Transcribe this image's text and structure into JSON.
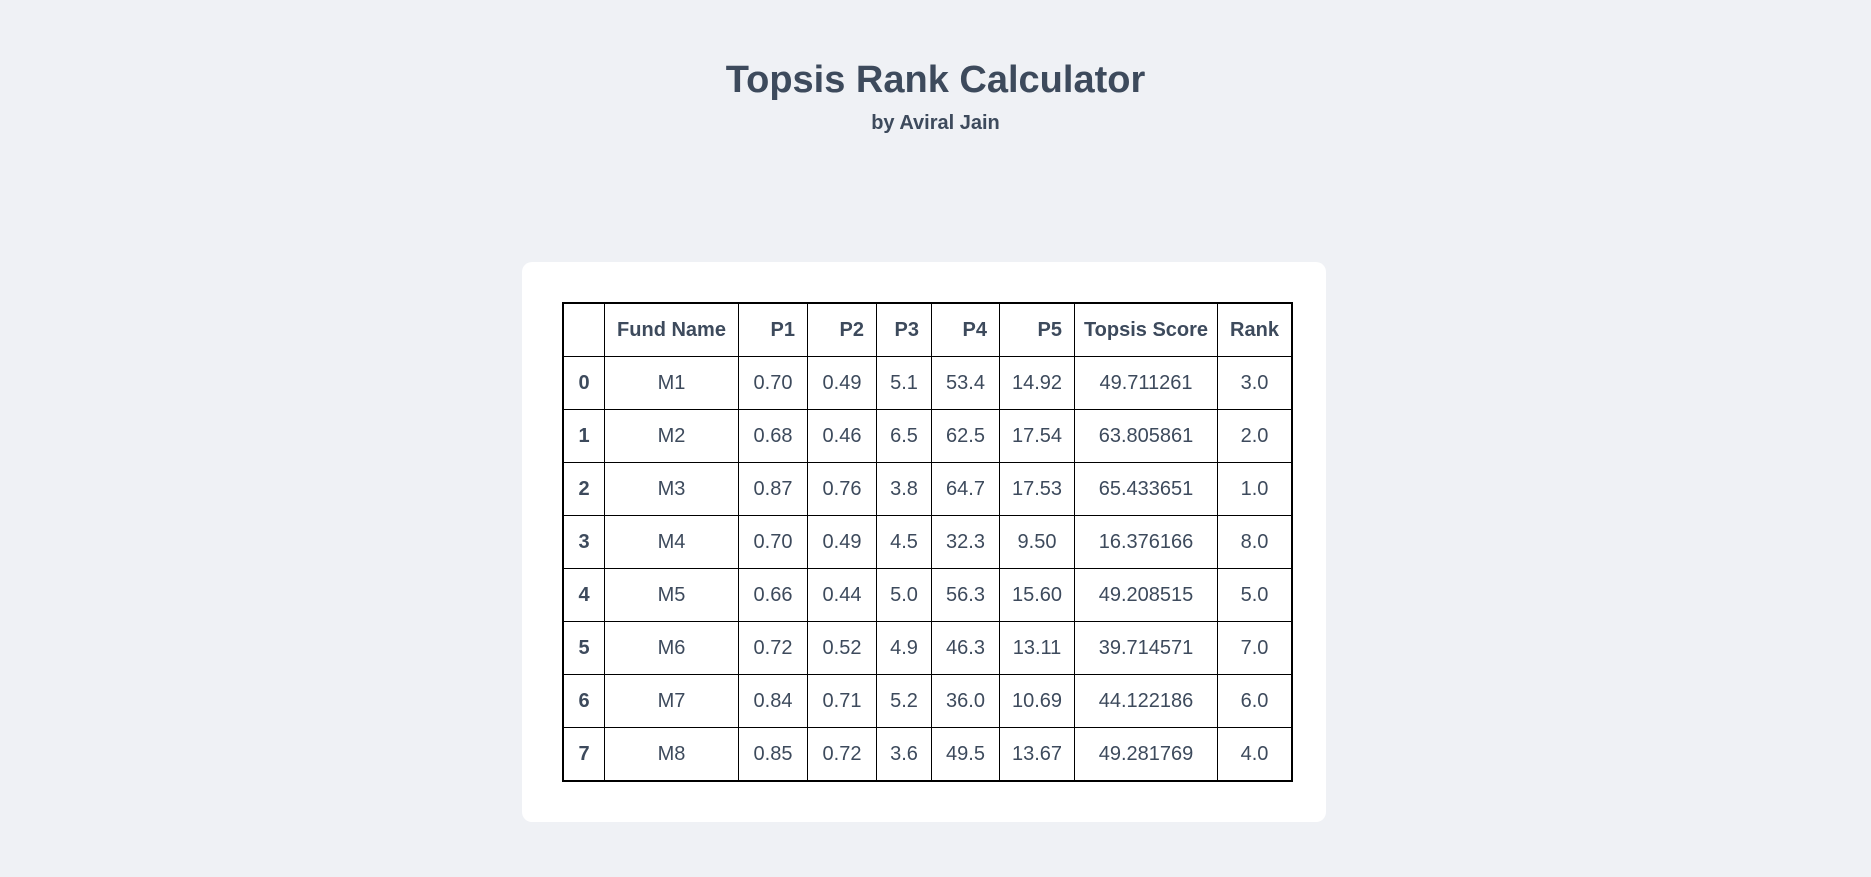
{
  "header": {
    "title": "Topsis Rank Calculator",
    "subtitle": "by Aviral Jain"
  },
  "table": {
    "columns": [
      "",
      "Fund Name",
      "P1",
      "P2",
      "P3",
      "P4",
      "P5",
      "Topsis Score",
      "Rank"
    ],
    "rows": [
      [
        "0",
        "M1",
        "0.70",
        "0.49",
        "5.1",
        "53.4",
        "14.92",
        "49.711261",
        "3.0"
      ],
      [
        "1",
        "M2",
        "0.68",
        "0.46",
        "6.5",
        "62.5",
        "17.54",
        "63.805861",
        "2.0"
      ],
      [
        "2",
        "M3",
        "0.87",
        "0.76",
        "3.8",
        "64.7",
        "17.53",
        "65.433651",
        "1.0"
      ],
      [
        "3",
        "M4",
        "0.70",
        "0.49",
        "4.5",
        "32.3",
        "9.50",
        "16.376166",
        "8.0"
      ],
      [
        "4",
        "M5",
        "0.66",
        "0.44",
        "5.0",
        "56.3",
        "15.60",
        "49.208515",
        "5.0"
      ],
      [
        "5",
        "M6",
        "0.72",
        "0.52",
        "4.9",
        "46.3",
        "13.11",
        "39.714571",
        "7.0"
      ],
      [
        "6",
        "M7",
        "0.84",
        "0.71",
        "5.2",
        "36.0",
        "10.69",
        "44.122186",
        "6.0"
      ],
      [
        "7",
        "M8",
        "0.85",
        "0.72",
        "3.6",
        "49.5",
        "13.67",
        "49.281769",
        "4.0"
      ]
    ]
  }
}
